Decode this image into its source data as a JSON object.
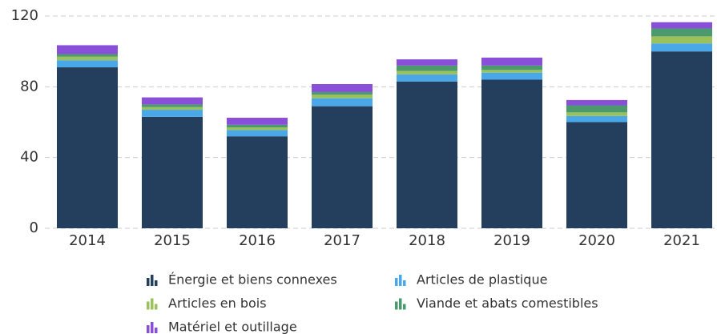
{
  "chart_data": {
    "type": "stacked_bar",
    "categories": [
      "2014",
      "2015",
      "2016",
      "2017",
      "2018",
      "2019",
      "2020",
      "2021"
    ],
    "series": [
      {
        "name": "Énergie et biens connexes",
        "color": "#243f5e",
        "values": [
          91,
          63,
          52,
          69,
          83,
          84,
          60,
          100
        ]
      },
      {
        "name": "Articles de plastique",
        "color": "#4aa8e8",
        "values": [
          4,
          4,
          3.5,
          4.5,
          4,
          4,
          3.5,
          4.5
        ]
      },
      {
        "name": "Articles en bois",
        "color": "#9bc15a",
        "values": [
          2,
          1.5,
          1.5,
          2,
          2,
          1.5,
          2,
          4
        ]
      },
      {
        "name": "Viande et abats comestibles",
        "color": "#4a9a6e",
        "values": [
          1.5,
          1.5,
          1.5,
          1.5,
          3,
          2.5,
          4,
          4.5
        ]
      },
      {
        "name": "Matériel et outillage",
        "color": "#8a4fd8",
        "values": [
          5,
          4,
          4,
          4.5,
          3.5,
          4.5,
          3,
          3.5
        ]
      }
    ],
    "ylim": [
      0,
      120
    ],
    "yticks": [
      0,
      40,
      80,
      120
    ],
    "grid": true
  }
}
